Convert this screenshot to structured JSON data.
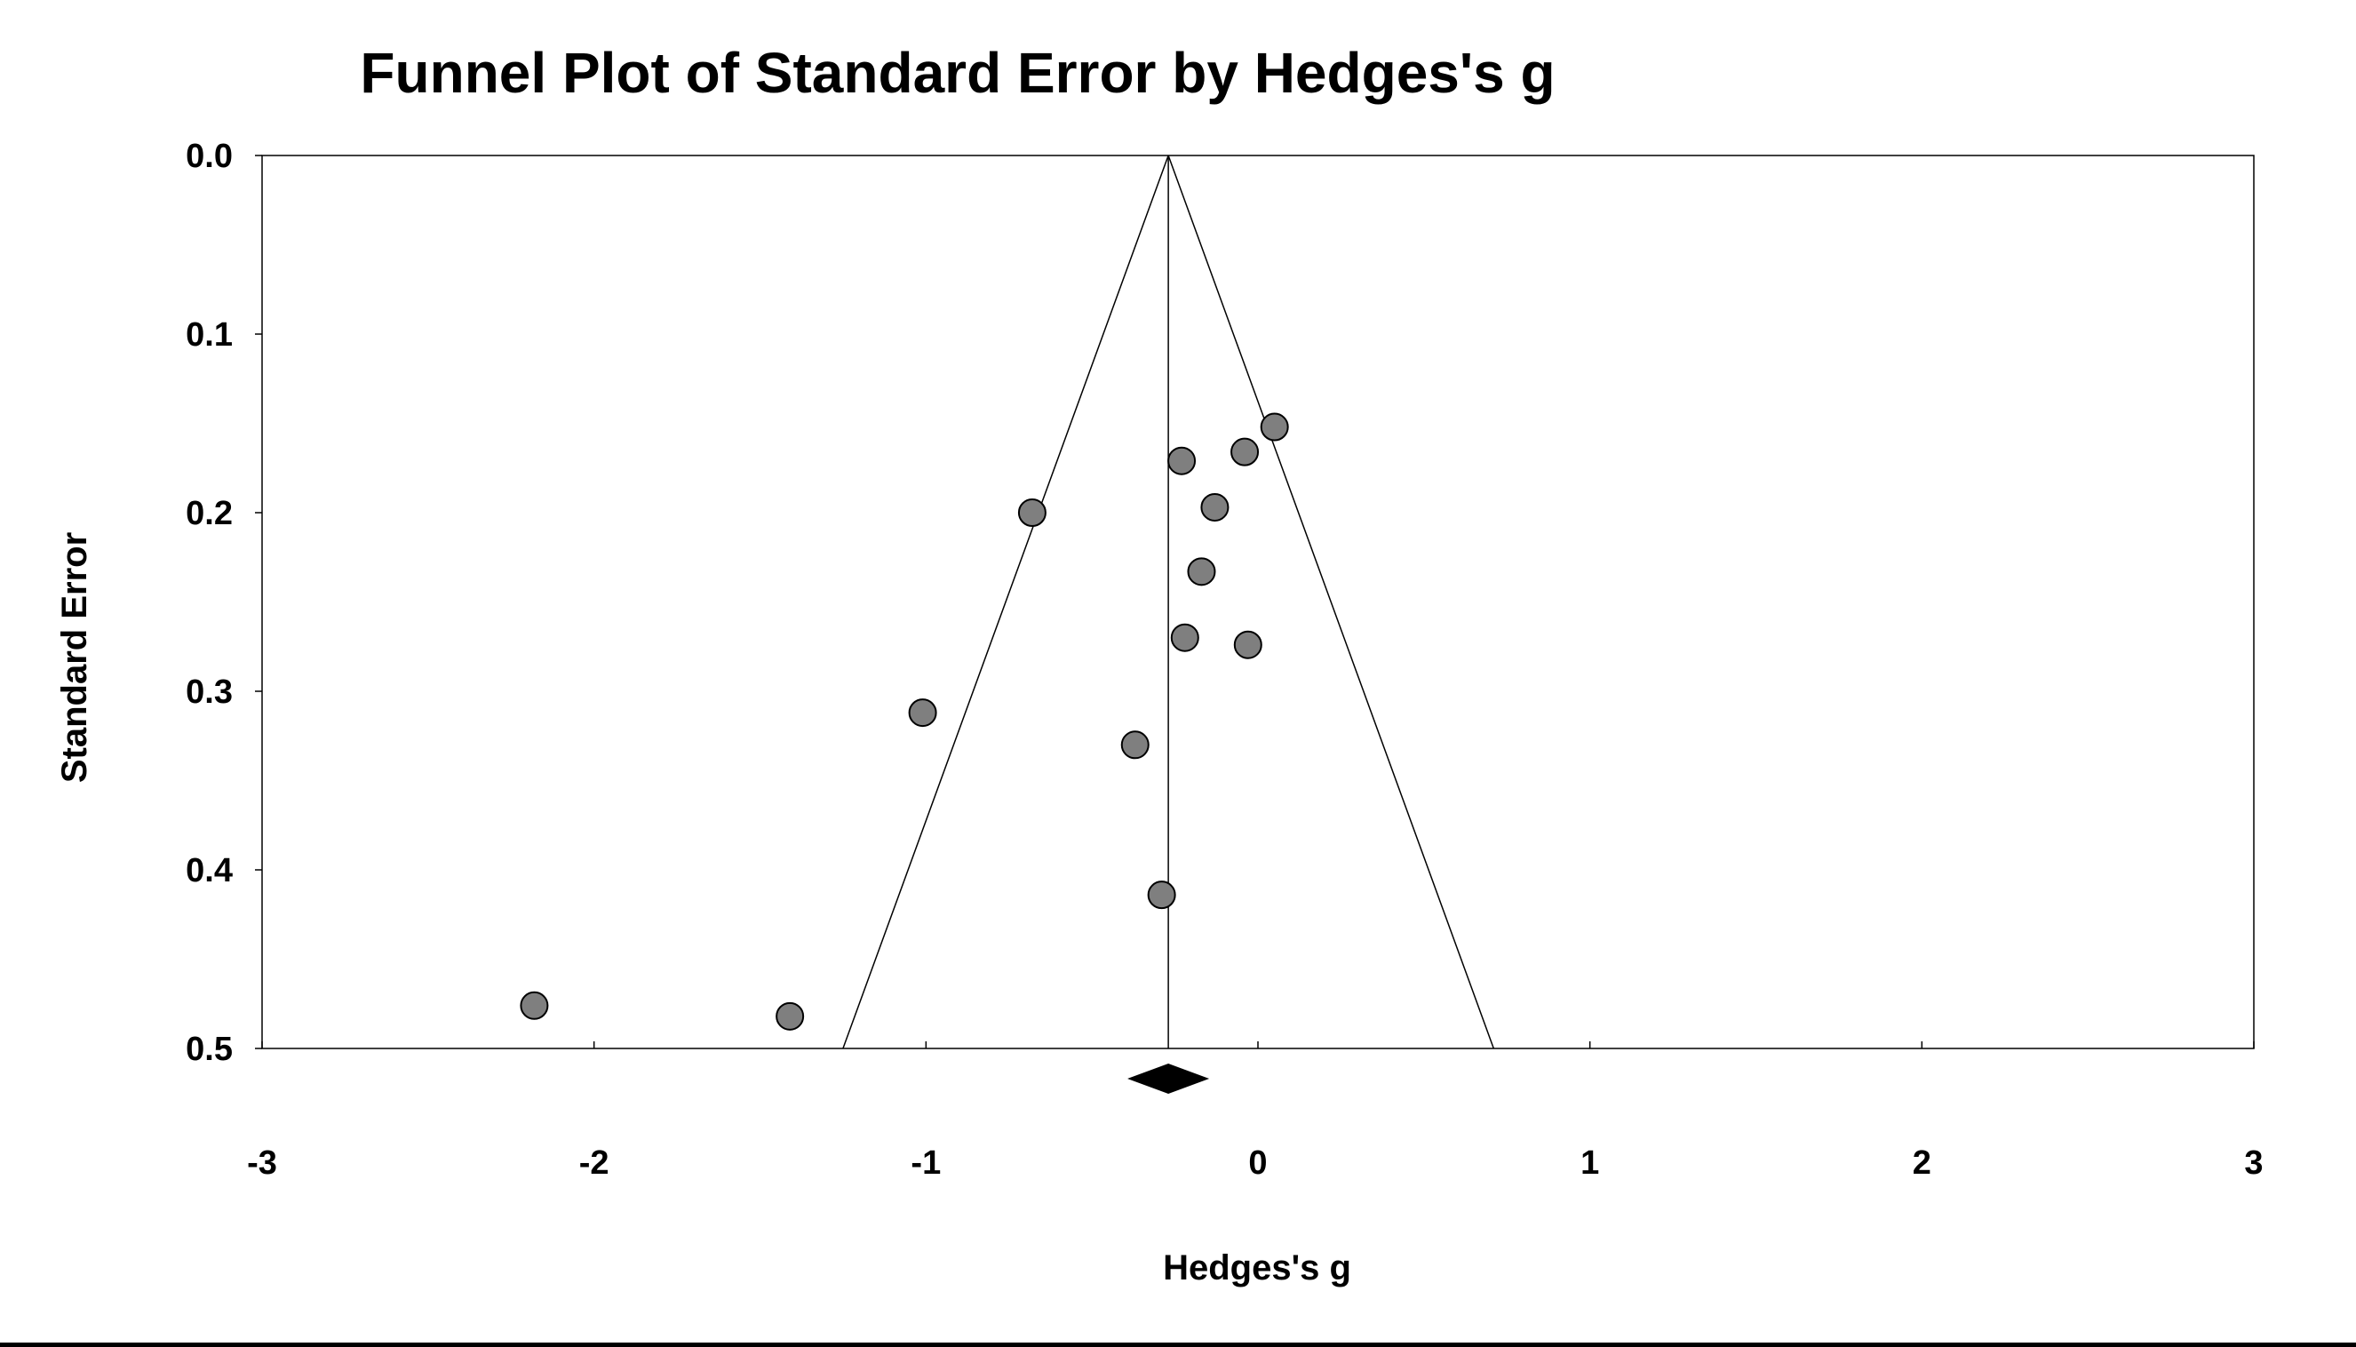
{
  "chart_data": {
    "type": "scatter",
    "title": "Funnel Plot of Standard Error by Hedges's g",
    "xlabel": "Hedges's g",
    "ylabel": "Standard Error",
    "xlim": [
      -3,
      3
    ],
    "ylim": [
      0.0,
      0.5
    ],
    "y_inverted": true,
    "x_ticks": [
      -3,
      -2,
      -1,
      0,
      1,
      2,
      3
    ],
    "x_tick_labels": [
      "-3",
      "-2",
      "-1",
      "0",
      "1",
      "2",
      "3"
    ],
    "y_ticks": [
      0.0,
      0.1,
      0.2,
      0.3,
      0.4,
      0.5
    ],
    "y_tick_labels": [
      "0.0",
      "0.1",
      "0.2",
      "0.3",
      "0.4",
      "0.5"
    ],
    "grid": false,
    "legend": "none",
    "summary_effect": -0.27,
    "funnel_z": 1.96,
    "points": [
      {
        "x": 0.05,
        "y": 0.152
      },
      {
        "x": -0.04,
        "y": 0.166
      },
      {
        "x": -0.23,
        "y": 0.171
      },
      {
        "x": -0.13,
        "y": 0.197
      },
      {
        "x": -0.68,
        "y": 0.2
      },
      {
        "x": -0.17,
        "y": 0.233
      },
      {
        "x": -0.22,
        "y": 0.27
      },
      {
        "x": -0.03,
        "y": 0.274
      },
      {
        "x": -1.01,
        "y": 0.312
      },
      {
        "x": -0.37,
        "y": 0.33
      },
      {
        "x": -0.29,
        "y": 0.414
      },
      {
        "x": -2.18,
        "y": 0.476
      },
      {
        "x": -1.41,
        "y": 0.482
      }
    ],
    "colors": {
      "point_fill": "#7f7f7f",
      "point_stroke": "#000000",
      "line": "#000000",
      "diamond": "#000000"
    }
  }
}
